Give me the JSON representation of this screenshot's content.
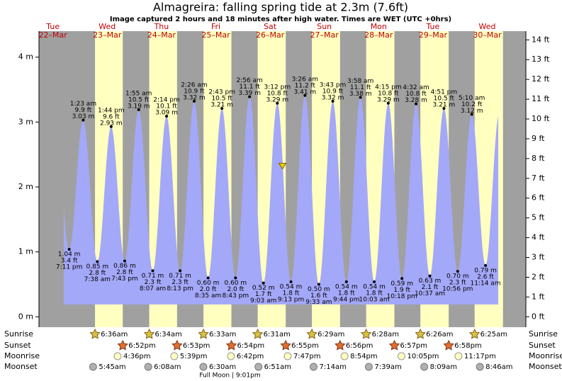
{
  "title": "Almagreira: falling  spring tide at 2.3m (7.6ft)",
  "subtitle": "Image captured 2 hours and 18 minutes after high water. Times are WET (UTC +0hrs)",
  "current_height_m": 2.3,
  "y_axis_m": {
    "lim": [
      -0.16,
      4.4
    ],
    "ticks": [
      {
        "value": 0,
        "label": "0 m"
      },
      {
        "value": 1,
        "label": "1 m"
      },
      {
        "value": 2,
        "label": "2 m"
      },
      {
        "value": 3,
        "label": "3 m"
      },
      {
        "value": 4,
        "label": "4 m"
      }
    ]
  },
  "y_axis_ft": {
    "lim": [
      -0.525,
      14.44
    ],
    "ticks": [
      {
        "value": 0,
        "label": "0 ft"
      },
      {
        "value": 1,
        "label": "1 ft"
      },
      {
        "value": 2,
        "label": "2 ft"
      },
      {
        "value": 3,
        "label": "3 ft"
      },
      {
        "value": 4,
        "label": "4 ft"
      },
      {
        "value": 5,
        "label": "5 ft"
      },
      {
        "value": 6,
        "label": "6 ft"
      },
      {
        "value": 7,
        "label": "7 ft"
      },
      {
        "value": 8,
        "label": "8 ft"
      },
      {
        "value": 9,
        "label": "9 ft"
      },
      {
        "value": 10,
        "label": "10 ft"
      },
      {
        "value": 11,
        "label": "11 ft"
      },
      {
        "value": 12,
        "label": "12 ft"
      },
      {
        "value": 13,
        "label": "13 ft"
      },
      {
        "value": 14,
        "label": "14 ft"
      }
    ]
  },
  "row_labels": {
    "sunrise": "Sunrise",
    "sunset": "Sunset",
    "moonrise": "Moonrise",
    "moonset": "Moonset"
  },
  "days": [
    {
      "weekday": "Tue",
      "date": "22–Mar",
      "tides": [
        {
          "time": "7:11 pm",
          "m": 1.04,
          "m_label": "1.04 m",
          "ft": 3.4,
          "ft_label": "3.4 ft"
        }
      ]
    },
    {
      "weekday": "Wed",
      "date": "23–Mar",
      "sunrise": "6:36am",
      "sunset": "6:52pm",
      "moonrise": "4:36pm",
      "moonset": "5:45am",
      "tides": [
        {
          "time": "1:23 am",
          "m": 3.03,
          "m_label": "3.03 m",
          "ft": 9.9,
          "ft_label": "9.9 ft"
        },
        {
          "time": "7:38 am",
          "m": 0.85,
          "m_label": "0.85 m",
          "ft": 2.8,
          "ft_label": "2.8 ft"
        },
        {
          "time": "1:44 pm",
          "m": 2.93,
          "m_label": "2.93 m",
          "ft": 9.6,
          "ft_label": "9.6 ft"
        },
        {
          "time": "7:43 pm",
          "m": 0.86,
          "m_label": "0.86 m",
          "ft": 2.8,
          "ft_label": "2.8 ft"
        }
      ]
    },
    {
      "weekday": "Thu",
      "date": "24–Mar",
      "sunrise": "6:34am",
      "sunset": "6:53pm",
      "moonrise": "5:39pm",
      "moonset": "6:08am",
      "tides": [
        {
          "time": "1:55 am",
          "m": 3.19,
          "m_label": "3.19 m",
          "ft": 10.5,
          "ft_label": "10.5 ft"
        },
        {
          "time": "8:07 am",
          "m": 0.71,
          "m_label": "0.71 m",
          "ft": 2.3,
          "ft_label": "2.3 ft"
        },
        {
          "time": "2:14 pm",
          "m": 3.09,
          "m_label": "3.09 m",
          "ft": 10.1,
          "ft_label": "10.1 ft"
        },
        {
          "time": "8:13 pm",
          "m": 0.71,
          "m_label": "0.71 m",
          "ft": 2.3,
          "ft_label": "2.3 ft"
        }
      ]
    },
    {
      "weekday": "Fri",
      "date": "25–Mar",
      "sunrise": "6:33am",
      "sunset": "6:54pm",
      "moonrise": "6:42pm",
      "moonset": "6:30am",
      "moon_phase": "Full Moon | 9:01pm",
      "tides": [
        {
          "time": "2:26 am",
          "m": 3.32,
          "m_label": "3.32 m",
          "ft": 10.9,
          "ft_label": "10.9 ft"
        },
        {
          "time": "8:35 am",
          "m": 0.6,
          "m_label": "0.60 m",
          "ft": 2.0,
          "ft_label": "2.0 ft"
        },
        {
          "time": "2:43 pm",
          "m": 3.21,
          "m_label": "3.21 m",
          "ft": 10.5,
          "ft_label": "10.5 ft"
        },
        {
          "time": "8:43 pm",
          "m": 0.6,
          "m_label": "0.60 m",
          "ft": 2.0,
          "ft_label": "2.0 ft"
        }
      ]
    },
    {
      "weekday": "Sat",
      "date": "26–Mar",
      "sunrise": "6:31am",
      "sunset": "6:55pm",
      "moonrise": "7:47pm",
      "moonset": "6:51am",
      "tides": [
        {
          "time": "2:56 am",
          "m": 3.39,
          "m_label": "3.39 m",
          "ft": 11.1,
          "ft_label": "11.1 ft"
        },
        {
          "time": "9:03 am",
          "m": 0.52,
          "m_label": "0.52 m",
          "ft": 1.7,
          "ft_label": "1.7 ft"
        },
        {
          "time": "3:12 pm",
          "m": 3.29,
          "m_label": "3.29 m",
          "ft": 10.8,
          "ft_label": "10.8 ft"
        },
        {
          "time": "9:13 pm",
          "m": 0.54,
          "m_label": "0.54 m",
          "ft": 1.8,
          "ft_label": "1.8 ft"
        }
      ]
    },
    {
      "weekday": "Sun",
      "date": "27–Mar",
      "sunrise": "6:29am",
      "sunset": "6:56pm",
      "moonrise": "8:54pm",
      "moonset": "7:14am",
      "tides": [
        {
          "time": "3:26 am",
          "m": 3.41,
          "m_label": "3.41 m",
          "ft": 11.2,
          "ft_label": "11.2 ft"
        },
        {
          "time": "9:33 am",
          "m": 0.5,
          "m_label": "0.50 m",
          "ft": 1.6,
          "ft_label": "1.6 ft"
        },
        {
          "time": "3:43 pm",
          "m": 3.32,
          "m_label": "3.32 m",
          "ft": 10.9,
          "ft_label": "10.9 ft"
        },
        {
          "time": "9:44 pm",
          "m": 0.54,
          "m_label": "0.54 m",
          "ft": 1.8,
          "ft_label": "1.8 ft"
        }
      ]
    },
    {
      "weekday": "Mon",
      "date": "28–Mar",
      "sunrise": "6:28am",
      "sunset": "6:57pm",
      "moonrise": "10:05pm",
      "moonset": "7:39am",
      "tides": [
        {
          "time": "3:58 am",
          "m": 3.38,
          "m_label": "3.38 m",
          "ft": 11.1,
          "ft_label": "11.1 ft"
        },
        {
          "time": "10:03 am",
          "m": 0.54,
          "m_label": "0.54 m",
          "ft": 1.8,
          "ft_label": "1.8 ft"
        },
        {
          "time": "4:15 pm",
          "m": 3.29,
          "m_label": "3.29 m",
          "ft": 10.8,
          "ft_label": "10.8 ft"
        },
        {
          "time": "10:18 pm",
          "m": 0.59,
          "m_label": "0.59 m",
          "ft": 1.9,
          "ft_label": "1.9 ft"
        }
      ]
    },
    {
      "weekday": "Tue",
      "date": "29–Mar",
      "sunrise": "6:26am",
      "sunset": "6:58pm",
      "moonrise": "11:17pm",
      "moonset": "8:09am",
      "tides": [
        {
          "time": "4:32 am",
          "m": 3.28,
          "m_label": "3.28 m",
          "ft": 10.8,
          "ft_label": "10.8 ft"
        },
        {
          "time": "10:37 am",
          "m": 0.63,
          "m_label": "0.63 m",
          "ft": 2.1,
          "ft_label": "2.1 ft"
        },
        {
          "time": "4:51 pm",
          "m": 3.21,
          "m_label": "3.21 m",
          "ft": 10.5,
          "ft_label": "10.5 ft"
        },
        {
          "time": "10:56 pm",
          "m": 0.7,
          "m_label": "0.70 m",
          "ft": 2.3,
          "ft_label": "2.3 ft"
        }
      ]
    },
    {
      "weekday": "Wed",
      "date": "30–Mar",
      "sunrise": "6:25am",
      "moonset": "8:46am",
      "tides": [
        {
          "time": "5:10 am",
          "m": 3.12,
          "m_label": "3.12 m",
          "ft": 10.2,
          "ft_label": "10.2 ft"
        },
        {
          "time": "11:14 am",
          "m": 0.79,
          "m_label": "0.79 m",
          "ft": 2.6,
          "ft_label": "2.6 ft"
        }
      ]
    }
  ]
}
